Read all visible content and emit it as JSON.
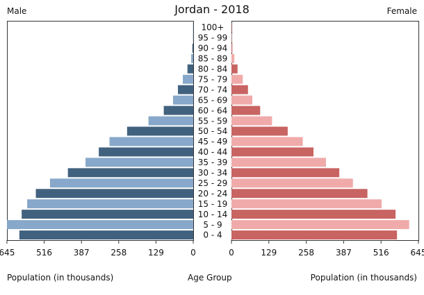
{
  "chart_data": {
    "type": "bar",
    "title": "Jordan - 2018",
    "left_label": "Male",
    "right_label": "Female",
    "xlabel_left": "Population (in thousands)",
    "xlabel_center": "Age Group",
    "xlabel_right": "Population (in thousands)",
    "xlim": [
      0,
      645
    ],
    "ticks": [
      0,
      129,
      258,
      387,
      516,
      645
    ],
    "tick_labels_left": [
      "0",
      "129",
      "258",
      "387",
      "516",
      "645"
    ],
    "tick_labels_right": [
      "0",
      "129",
      "258",
      "387",
      "516",
      "645"
    ],
    "categories": [
      "0 - 4",
      "5 - 9",
      "10 - 14",
      "15 - 19",
      "20 - 24",
      "25 - 29",
      "30 - 34",
      "35 - 39",
      "40 - 44",
      "45 - 49",
      "50 - 54",
      "55 - 59",
      "60 - 64",
      "65 - 69",
      "70 - 74",
      "75 - 79",
      "80 - 84",
      "85 - 89",
      "90 - 94",
      "95 - 99",
      "100+"
    ],
    "series": [
      {
        "name": "Male",
        "values": [
          602,
          645,
          594,
          575,
          545,
          496,
          434,
          373,
          327,
          290,
          229,
          155,
          102,
          70,
          53,
          36,
          20,
          7,
          3,
          1,
          0.5
        ],
        "colors": [
          "#41627f",
          "#87a8ca"
        ]
      },
      {
        "name": "Female",
        "values": [
          571,
          613,
          566,
          518,
          469,
          419,
          372,
          326,
          283,
          246,
          194,
          140,
          99,
          72,
          57,
          39,
          21,
          10,
          3,
          1,
          0.5
        ],
        "colors": [
          "#c86462",
          "#f0aaaa"
        ]
      }
    ]
  }
}
